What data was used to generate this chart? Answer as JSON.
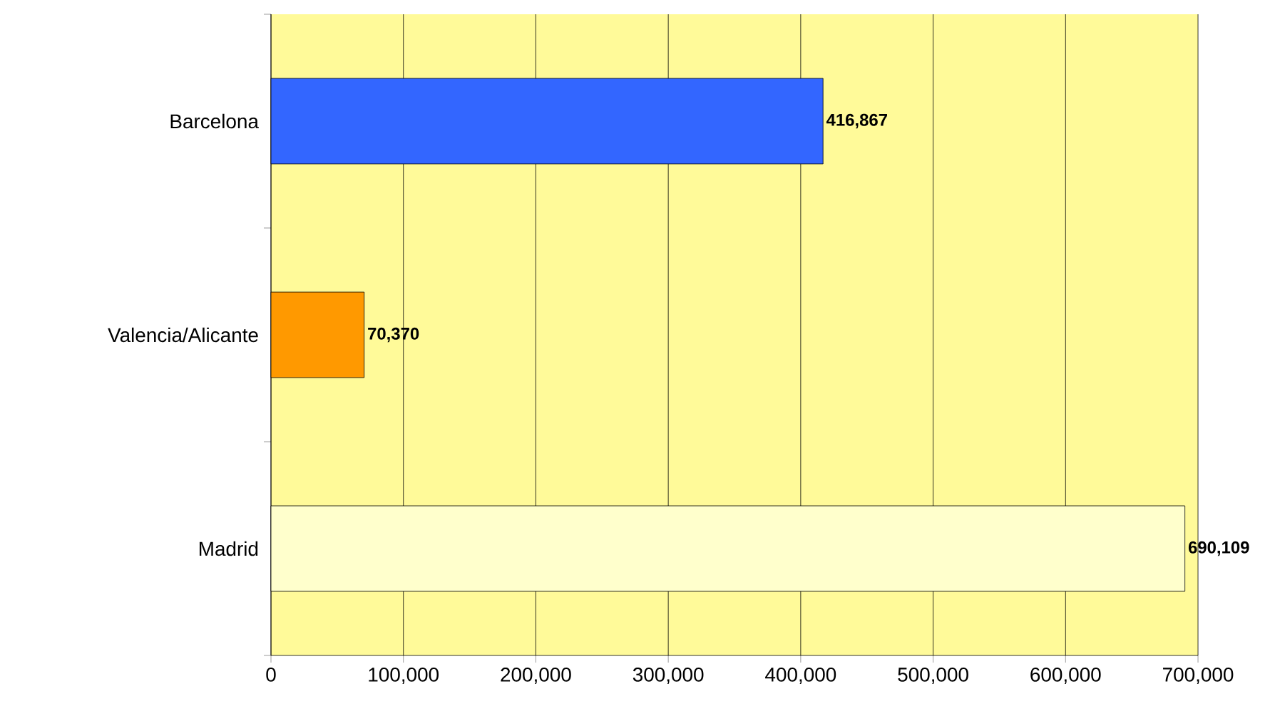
{
  "chart_data": {
    "type": "bar",
    "orientation": "horizontal",
    "categories": [
      "Barcelona",
      "Valencia/Alicante",
      "Madrid"
    ],
    "values": [
      416867,
      70370,
      690109
    ],
    "colors": [
      "#3366ff",
      "#ff9900",
      "#ffffcc"
    ],
    "value_labels": [
      "416,867",
      "70,370",
      "690,109"
    ],
    "xlim": [
      0,
      700000
    ],
    "xticks": [
      0,
      {
        "value": 100000,
        "label": "100,000"
      },
      {
        "value": 200000,
        "label": "200,000"
      },
      {
        "value": 300000,
        "label": "300,000"
      },
      {
        "value": 400000,
        "label": "400,000"
      },
      {
        "value": 500000,
        "label": "500,000"
      },
      {
        "value": 600000,
        "label": "600,000"
      },
      {
        "value": 700000,
        "label": "700,000"
      }
    ],
    "grid": "x"
  }
}
